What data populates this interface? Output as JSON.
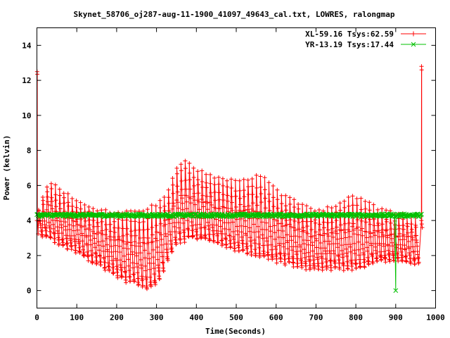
{
  "chart_data": {
    "type": "line",
    "title": "Skynet_58706_oj287-aug-11-1900_41097_49643_cal.txt, LOWRES, ralongmap",
    "xlabel": "Time(Seconds)",
    "ylabel": "Power (kelvin)",
    "xlim": [
      0,
      1000
    ],
    "ylim": [
      -1,
      15
    ],
    "xticks": [
      0,
      100,
      200,
      300,
      400,
      500,
      600,
      700,
      800,
      900,
      1000
    ],
    "yticks": [
      0,
      2,
      4,
      6,
      8,
      10,
      12,
      14
    ],
    "grid": false,
    "legend_position": "top-right",
    "series": [
      {
        "name": "XL-59.16 Tsys:62.59",
        "color": "#ff0000",
        "marker": "plus",
        "sweep_period": 10.5,
        "spikes": [
          {
            "x": 0,
            "y": 12.5
          },
          {
            "x": 965,
            "y": 12.8
          }
        ],
        "upper_envelope": [
          {
            "x": 5,
            "y": 4.6
          },
          {
            "x": 30,
            "y": 6.4
          },
          {
            "x": 60,
            "y": 5.8
          },
          {
            "x": 100,
            "y": 5.2
          },
          {
            "x": 140,
            "y": 4.8
          },
          {
            "x": 180,
            "y": 4.6
          },
          {
            "x": 220,
            "y": 4.5
          },
          {
            "x": 260,
            "y": 4.6
          },
          {
            "x": 300,
            "y": 5.0
          },
          {
            "x": 330,
            "y": 5.8
          },
          {
            "x": 350,
            "y": 7.2
          },
          {
            "x": 370,
            "y": 7.6
          },
          {
            "x": 400,
            "y": 7.0
          },
          {
            "x": 440,
            "y": 6.6
          },
          {
            "x": 500,
            "y": 6.3
          },
          {
            "x": 560,
            "y": 6.7
          },
          {
            "x": 600,
            "y": 5.8
          },
          {
            "x": 650,
            "y": 5.2
          },
          {
            "x": 700,
            "y": 4.6
          },
          {
            "x": 750,
            "y": 5.0
          },
          {
            "x": 800,
            "y": 5.5
          },
          {
            "x": 850,
            "y": 4.8
          },
          {
            "x": 900,
            "y": 4.4
          },
          {
            "x": 955,
            "y": 4.2
          }
        ],
        "lower_envelope": [
          {
            "x": 5,
            "y": 3.2
          },
          {
            "x": 30,
            "y": 3.0
          },
          {
            "x": 60,
            "y": 2.6
          },
          {
            "x": 100,
            "y": 2.2
          },
          {
            "x": 140,
            "y": 1.6
          },
          {
            "x": 180,
            "y": 1.1
          },
          {
            "x": 220,
            "y": 0.6
          },
          {
            "x": 260,
            "y": 0.3
          },
          {
            "x": 280,
            "y": 0.1
          },
          {
            "x": 300,
            "y": 0.3
          },
          {
            "x": 330,
            "y": 1.8
          },
          {
            "x": 350,
            "y": 2.6
          },
          {
            "x": 380,
            "y": 3.0
          },
          {
            "x": 420,
            "y": 2.9
          },
          {
            "x": 460,
            "y": 2.6
          },
          {
            "x": 500,
            "y": 2.3
          },
          {
            "x": 550,
            "y": 2.0
          },
          {
            "x": 600,
            "y": 1.7
          },
          {
            "x": 650,
            "y": 1.4
          },
          {
            "x": 700,
            "y": 1.2
          },
          {
            "x": 750,
            "y": 1.3
          },
          {
            "x": 800,
            "y": 1.2
          },
          {
            "x": 850,
            "y": 1.6
          },
          {
            "x": 900,
            "y": 1.8
          },
          {
            "x": 955,
            "y": 1.5
          }
        ]
      },
      {
        "name": "YR-13.19 Tsys:17.44",
        "color": "#00c000",
        "marker": "cross",
        "x_range": [
          0,
          965
        ],
        "mean_y": 4.3,
        "noise_y": 0.08,
        "dips": [
          {
            "x": 900,
            "y": 0.0
          }
        ]
      }
    ]
  }
}
